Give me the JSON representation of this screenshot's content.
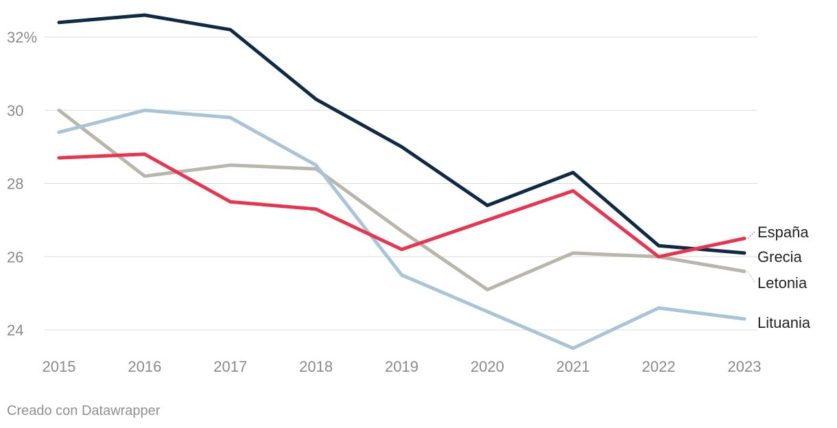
{
  "chart_data": {
    "type": "line",
    "categories": [
      "2015",
      "2016",
      "2017",
      "2018",
      "2019",
      "2020",
      "2021",
      "2022",
      "2023"
    ],
    "ylim": [
      23.5,
      32.6
    ],
    "yticks": [
      24,
      26,
      28,
      30,
      32
    ],
    "ytick_labels": [
      "24",
      "26",
      "28",
      "30",
      "32%"
    ],
    "grid": true,
    "series": [
      {
        "name": "Grecia",
        "color": "#0f2a45",
        "values": [
          32.4,
          32.6,
          32.2,
          30.3,
          29.0,
          27.4,
          28.3,
          26.3,
          26.1
        ]
      },
      {
        "name": "Letonia",
        "color": "#b9b5aa",
        "values": [
          30.0,
          28.2,
          28.5,
          28.4,
          26.7,
          25.1,
          26.1,
          26.0,
          25.6
        ]
      },
      {
        "name": "Lituania",
        "color": "#a7c4d8",
        "values": [
          29.4,
          30.0,
          29.8,
          28.5,
          25.5,
          24.5,
          23.5,
          24.6,
          24.3
        ]
      },
      {
        "name": "España",
        "color": "#e8344f",
        "values": [
          28.7,
          28.8,
          27.5,
          27.3,
          26.2,
          27.0,
          27.8,
          26.0,
          26.5
        ]
      }
    ]
  },
  "footer": {
    "credit": "Creado con Datawrapper"
  }
}
